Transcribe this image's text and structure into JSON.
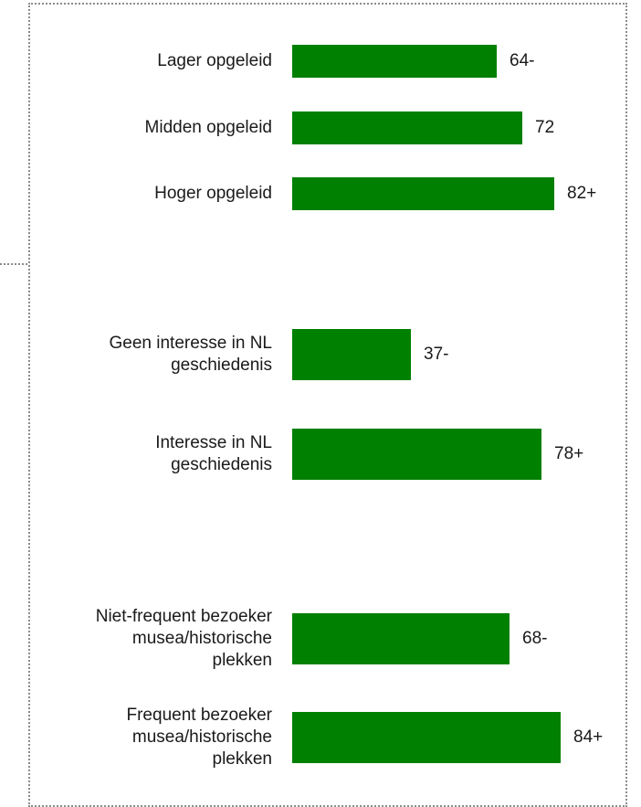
{
  "chart_data": {
    "type": "bar",
    "orientation": "horizontal",
    "bar_color": "#008000",
    "categories": [
      "Lager opgeleid",
      "Midden opgeleid",
      "Hoger opgeleid",
      "Geen interesse in NL\ngeschiedenis",
      "Interesse in NL\ngeschiedenis",
      "Niet-frequent bezoeker\nmusea/historische\nplekken",
      "Frequent bezoeker\nmusea/historische\nplekken"
    ],
    "values": [
      64,
      72,
      82,
      37,
      78,
      68,
      84
    ],
    "value_labels": [
      "64-",
      "72",
      "82+",
      "37-",
      "78+",
      "68-",
      "84+"
    ],
    "groups": [
      [
        "Lager opgeleid",
        "Midden opgeleid",
        "Hoger opgeleid"
      ],
      [
        "Geen interesse in NL\ngeschiedenis",
        "Interesse in NL\ngeschiedenis"
      ],
      [
        "Niet-frequent bezoeker\nmusea/historische\nplekken",
        "Frequent bezoeker\nmusea/historische\nplekken"
      ]
    ],
    "xlim": [
      0,
      100
    ],
    "grid": false,
    "legend": "none"
  }
}
